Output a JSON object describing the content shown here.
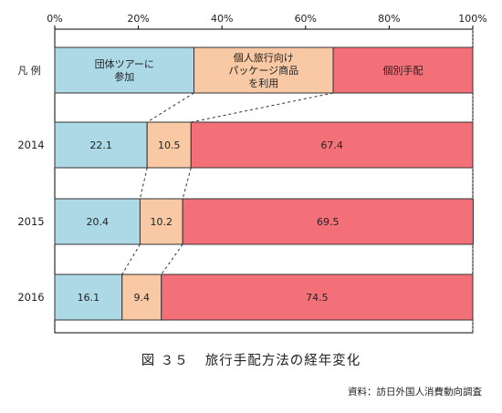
{
  "chart_data": {
    "type": "bar",
    "orientation": "horizontal",
    "stacked": true,
    "percent": true,
    "x_ticks": [
      "0%",
      "20%",
      "40%",
      "60%",
      "80%",
      "100%"
    ],
    "xlim": [
      0,
      100
    ],
    "legend_row": {
      "label": "凡 例",
      "items": [
        {
          "lines": [
            "団体ツアーに",
            "参加"
          ],
          "share": 33.3
        },
        {
          "lines": [
            "個人旅行向け",
            "パッケージ商品",
            "を利用"
          ],
          "share": 33.3
        },
        {
          "lines": [
            "個別手配"
          ],
          "share": 33.4
        }
      ]
    },
    "categories": [
      "2014",
      "2015",
      "2016"
    ],
    "series": [
      {
        "name": "団体ツアーに参加",
        "values": [
          22.1,
          20.4,
          16.1
        ],
        "labels": [
          "22.1",
          "20.4",
          "16.1"
        ]
      },
      {
        "name": "個人旅行向けパッケージ商品を利用",
        "values": [
          10.5,
          10.2,
          9.4
        ],
        "labels": [
          "10.5",
          "10.2",
          "9.4"
        ]
      },
      {
        "name": "個別手配",
        "values": [
          67.4,
          69.5,
          74.5
        ],
        "labels": [
          "67.4",
          "69.5",
          "74.5"
        ]
      }
    ],
    "colors": [
      "#add8e6",
      "#f8c9a4",
      "#f47078"
    ],
    "grid": false
  },
  "caption": {
    "fig_label": "図 ３５",
    "title": "旅行手配方法の経年変化"
  },
  "source": "資料：訪日外国人消費動向調査"
}
